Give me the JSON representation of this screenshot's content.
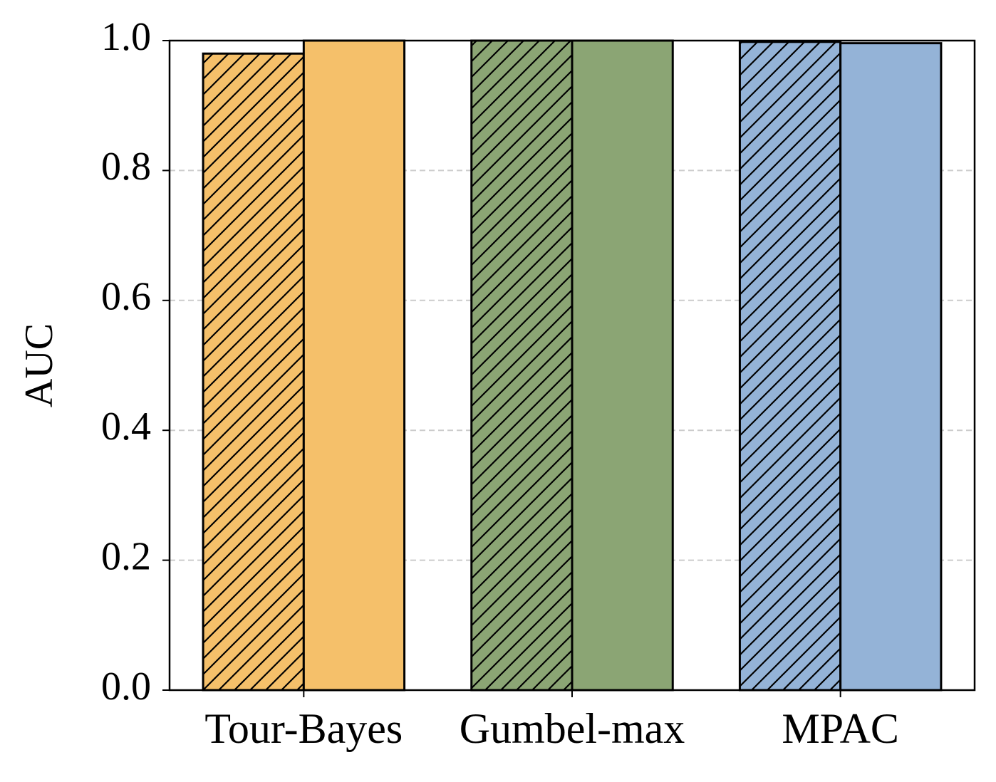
{
  "chart_data": {
    "type": "bar",
    "y_label": "AUC",
    "categories": [
      "Tour-Bayes",
      "Gumbel-max",
      "MPAC"
    ],
    "colors": [
      "#f5c06a",
      "#8ba574",
      "#94b3d7"
    ],
    "series": [
      {
        "hatch": true,
        "values": [
          0.98,
          1.0,
          0.998
        ]
      },
      {
        "hatch": false,
        "values": [
          1.0,
          1.0,
          0.996
        ]
      }
    ],
    "ylim": [
      0,
      1
    ],
    "yticks": [
      {
        "value": 0,
        "label": "0.0"
      },
      0.2,
      0.4,
      0.6,
      0.8,
      {
        "value": 1,
        "label": "1.0"
      }
    ],
    "grid": true
  }
}
